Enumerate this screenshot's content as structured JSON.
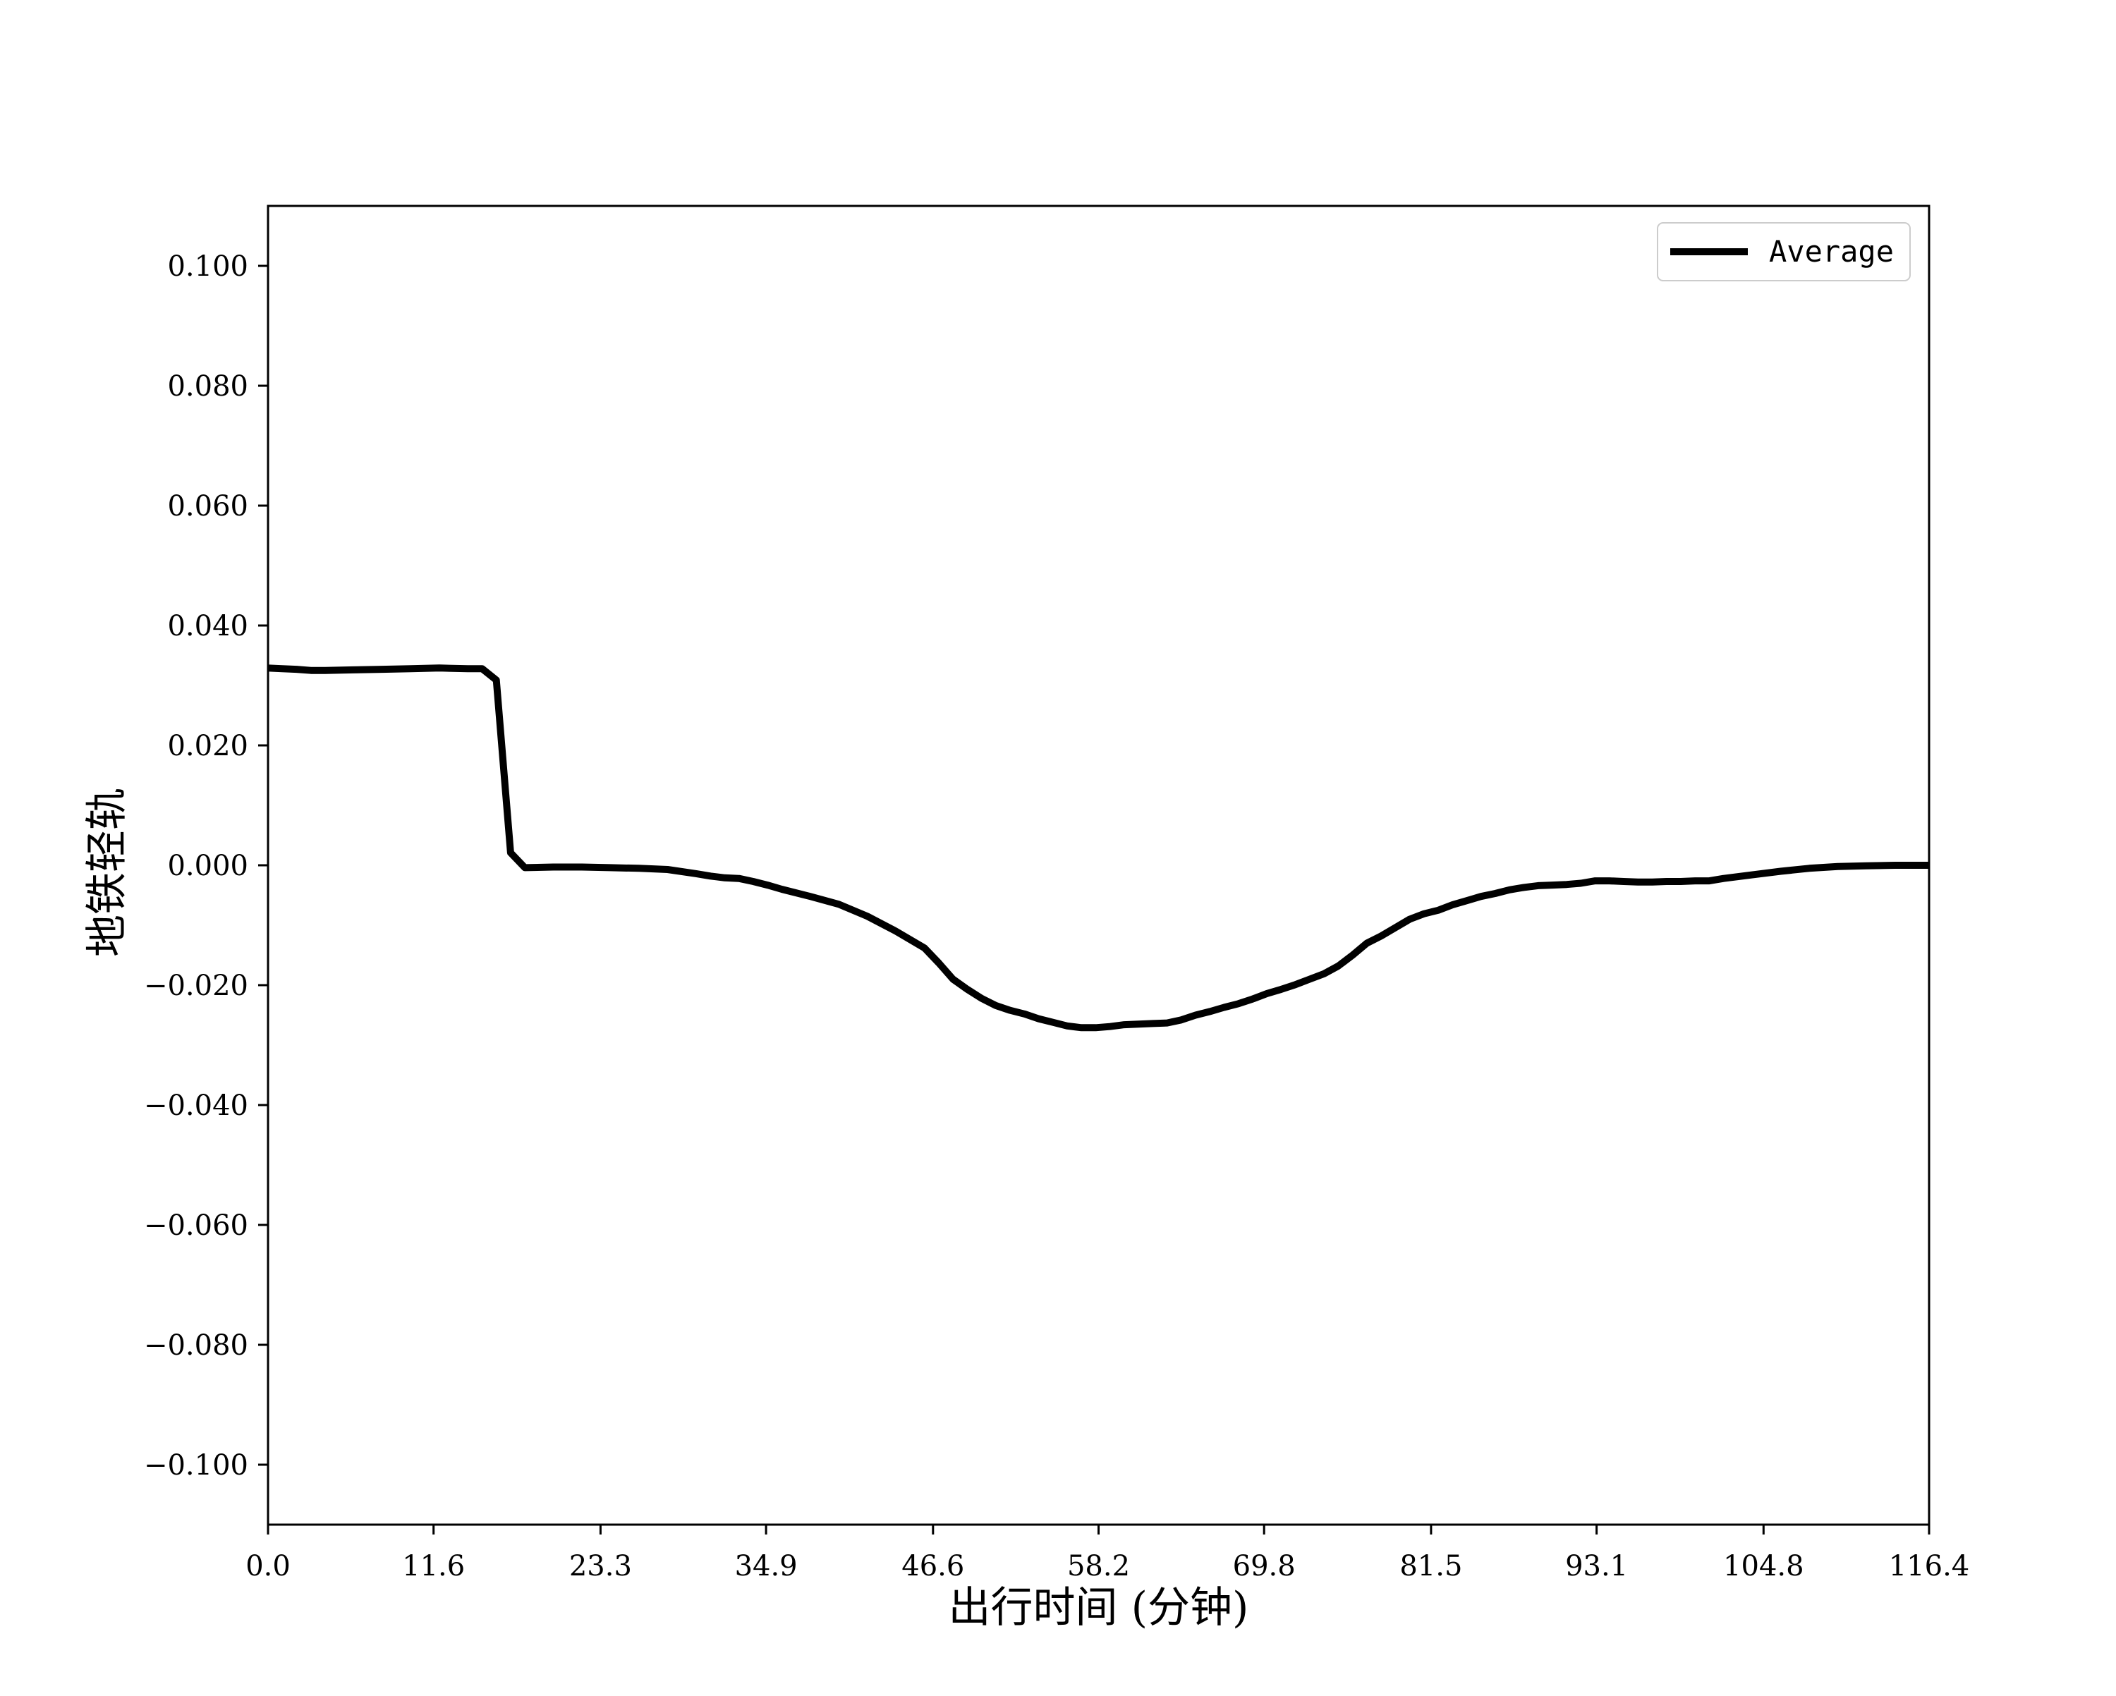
{
  "chart_data": {
    "type": "line",
    "title": "",
    "xlabel": "出行时间 (分钟)",
    "ylabel": "地铁轻轨",
    "xlim": [
      0.0,
      116.4
    ],
    "ylim": [
      -0.11,
      0.11
    ],
    "x_ticks": [
      0.0,
      11.6,
      23.3,
      34.9,
      46.6,
      58.2,
      69.8,
      81.5,
      93.1,
      104.8,
      116.4
    ],
    "x_tick_labels": [
      "0.0",
      "11.6",
      "23.3",
      "34.9",
      "46.6",
      "58.2",
      "69.8",
      "81.5",
      "93.1",
      "104.8",
      "116.4"
    ],
    "y_ticks": [
      0.1,
      0.08,
      0.06,
      0.04,
      0.02,
      0.0,
      -0.02,
      -0.04,
      -0.06,
      -0.08,
      -0.1
    ],
    "y_tick_labels": [
      "0.100",
      "0.080",
      "0.060",
      "0.040",
      "0.020",
      "0.000",
      "−0.020",
      "−0.040",
      "−0.060",
      "−0.080",
      "−0.100"
    ],
    "grid": false,
    "legend": {
      "position": "top-right",
      "entries": [
        "Average"
      ]
    },
    "series": [
      {
        "name": "Average",
        "color": "#000000",
        "x": [
          0.0,
          1.0,
          2.0,
          3.0,
          4.0,
          6.0,
          8.0,
          10.0,
          12.0,
          14.0,
          15.0,
          16.0,
          17.0,
          18.0,
          20.0,
          22.0,
          24.0,
          26.0,
          28.0,
          30.0,
          31.0,
          32.0,
          33.0,
          34.0,
          35.0,
          36.0,
          38.0,
          40.0,
          42.0,
          44.0,
          46.0,
          47.0,
          48.0,
          49.0,
          50.0,
          51.0,
          52.0,
          53.0,
          54.0,
          55.0,
          56.0,
          57.0,
          58.0,
          59.0,
          60.0,
          61.0,
          62.0,
          63.0,
          64.0,
          65.0,
          66.0,
          67.0,
          68.0,
          69.0,
          70.0,
          71.0,
          72.0,
          73.0,
          74.0,
          75.0,
          76.0,
          77.0,
          78.0,
          79.0,
          80.0,
          81.0,
          82.0,
          83.0,
          84.0,
          85.0,
          86.0,
          87.0,
          88.0,
          89.0,
          90.0,
          91.0,
          92.0,
          93.0,
          94.0,
          95.0,
          96.0,
          97.0,
          98.0,
          99.0,
          100.0,
          101.0,
          102.0,
          104.0,
          106.0,
          108.0,
          110.0,
          112.0,
          114.0,
          116.4
        ],
        "y": [
          0.0329,
          0.0328,
          0.0327,
          0.0325,
          0.0325,
          0.0326,
          0.0327,
          0.0328,
          0.0329,
          0.0328,
          0.0328,
          0.0309,
          0.0021,
          -0.0004,
          -0.0003,
          -0.0003,
          -0.0004,
          -0.0005,
          -0.0007,
          -0.0014,
          -0.0018,
          -0.0021,
          -0.0022,
          -0.0027,
          -0.0033,
          -0.004,
          -0.0052,
          -0.0065,
          -0.0085,
          -0.011,
          -0.0138,
          -0.0163,
          -0.019,
          -0.0207,
          -0.0222,
          -0.0234,
          -0.0242,
          -0.0248,
          -0.0256,
          -0.0262,
          -0.0268,
          -0.0271,
          -0.0271,
          -0.0269,
          -0.0266,
          -0.0265,
          -0.0264,
          -0.0263,
          -0.0258,
          -0.025,
          -0.0244,
          -0.0237,
          -0.0231,
          -0.0223,
          -0.0214,
          -0.0207,
          -0.0199,
          -0.019,
          -0.0181,
          -0.0168,
          -0.015,
          -0.013,
          -0.0118,
          -0.0104,
          -0.009,
          -0.0081,
          -0.0075,
          -0.0066,
          -0.0059,
          -0.0052,
          -0.0047,
          -0.0041,
          -0.0037,
          -0.0034,
          -0.0033,
          -0.0032,
          -0.003,
          -0.0026,
          -0.0026,
          -0.0027,
          -0.0028,
          -0.0028,
          -0.0027,
          -0.0027,
          -0.0026,
          -0.0026,
          -0.0022,
          -0.0016,
          -0.001,
          -0.0005,
          -0.0002,
          -0.0001,
          0.0,
          0.0
        ]
      }
    ]
  }
}
